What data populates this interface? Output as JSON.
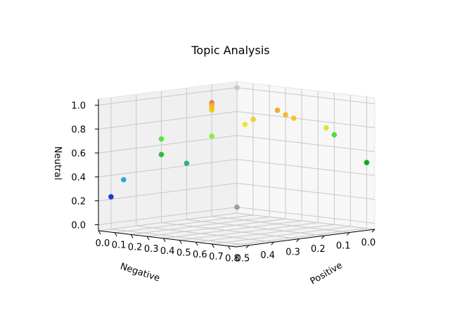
{
  "chart_data": {
    "type": "scatter3d",
    "title": "Topic Analysis",
    "xlabel": "Positive",
    "ylabel": "Negative",
    "zlabel": "Neutral",
    "xlim": [
      0.0,
      0.85
    ],
    "ylim": [
      0.0,
      0.55
    ],
    "zlim": [
      -0.05,
      1.05
    ],
    "x_ticks": [
      "0.0",
      "0.1",
      "0.2",
      "0.3",
      "0.4",
      "0.5",
      "0.6",
      "0.7",
      "0.8"
    ],
    "y_ticks": [
      "0.0",
      "0.1",
      "0.2",
      "0.3",
      "0.4",
      "0.5"
    ],
    "z_ticks": [
      "0.0",
      "0.2",
      "0.4",
      "0.6",
      "0.8",
      "1.0"
    ],
    "grid": true,
    "points": [
      {
        "x": 0.0,
        "y": 0.0,
        "z": 1.0,
        "color": "#c8c8c8"
      },
      {
        "x": 0.0,
        "y": 0.0,
        "z": 0.0,
        "color": "#999999"
      },
      {
        "x": 0.05,
        "y": 0.0,
        "z": 0.7,
        "color": "#e6e62e"
      },
      {
        "x": 0.1,
        "y": 0.0,
        "z": 0.75,
        "color": "#e6d22e"
      },
      {
        "x": 0.25,
        "y": 0.0,
        "z": 0.85,
        "color": "#f5a623"
      },
      {
        "x": 0.3,
        "y": 0.0,
        "z": 0.82,
        "color": "#f5b731"
      },
      {
        "x": 0.35,
        "y": 0.0,
        "z": 0.8,
        "color": "#f0c419"
      },
      {
        "x": 0.55,
        "y": 0.0,
        "z": 0.75,
        "color": "#d4e62e"
      },
      {
        "x": 0.6,
        "y": 0.0,
        "z": 0.7,
        "color": "#44dd2e"
      },
      {
        "x": 0.8,
        "y": 0.0,
        "z": 0.5,
        "color": "#0ca014"
      },
      {
        "x": 0.0,
        "y": 0.1,
        "z": 0.9,
        "color": "#f07040"
      },
      {
        "x": 0.0,
        "y": 0.1,
        "z": 0.88,
        "color": "#f5a623"
      },
      {
        "x": 0.0,
        "y": 0.1,
        "z": 0.86,
        "color": "#f5b731"
      },
      {
        "x": 0.0,
        "y": 0.1,
        "z": 0.84,
        "color": "#f0c419"
      },
      {
        "x": 0.0,
        "y": 0.1,
        "z": 0.62,
        "color": "#88ee33"
      },
      {
        "x": 0.0,
        "y": 0.2,
        "z": 0.42,
        "color": "#18b080"
      },
      {
        "x": 0.0,
        "y": 0.3,
        "z": 0.65,
        "color": "#55e040"
      },
      {
        "x": 0.0,
        "y": 0.3,
        "z": 0.52,
        "color": "#20b830"
      },
      {
        "x": 0.0,
        "y": 0.45,
        "z": 0.35,
        "color": "#1aa8d8"
      },
      {
        "x": 0.0,
        "y": 0.5,
        "z": 0.22,
        "color": "#1030d0"
      }
    ]
  }
}
